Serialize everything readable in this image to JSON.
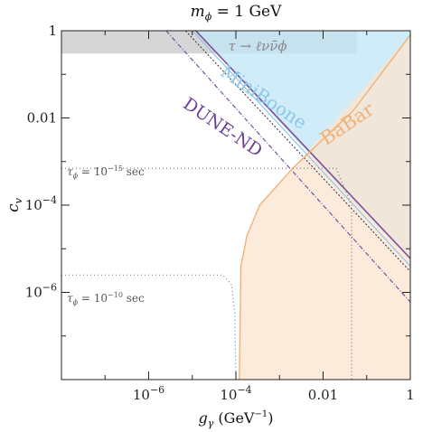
{
  "chart_data": {
    "type": "area",
    "title": "mϕ = 1 GeV",
    "xlabel_main": "g",
    "xlabel_sub": "γ",
    "xlabel_unit": " (GeV",
    "xlabel_exp": "−1",
    "xlabel_close": ")",
    "ylabel_main": "c",
    "ylabel_sub": "v",
    "xscale": "log",
    "yscale": "log",
    "xlim": [
      1e-08,
      1
    ],
    "ylim": [
      1e-08,
      1
    ],
    "x_ticks": [
      {
        "value": 1e-06,
        "base": "10",
        "exp": "−6"
      },
      {
        "value": 0.0001,
        "base": "10",
        "exp": "−4"
      },
      {
        "value": 0.01,
        "base": "0.01",
        "exp": ""
      },
      {
        "value": 1,
        "base": "1",
        "exp": ""
      }
    ],
    "y_ticks": [
      {
        "value": 1e-06,
        "base": "10",
        "exp": "−6"
      },
      {
        "value": 0.0001,
        "base": "10",
        "exp": "−4"
      },
      {
        "value": 0.01,
        "base": "0.01",
        "exp": ""
      },
      {
        "value": 1,
        "base": "1",
        "exp": ""
      }
    ],
    "regions": [
      {
        "name": "tau-decay-band",
        "color": "#c8c8c8",
        "points": [
          [
            1e-08,
            0.3
          ],
          [
            0.06,
            0.3
          ],
          [
            0.06,
            1
          ],
          [
            1e-08,
            1
          ]
        ]
      },
      {
        "name": "miniboone",
        "color": "#bfe6f5",
        "points": [
          [
            1.2e-05,
            1
          ],
          [
            0.06,
            1
          ],
          [
            1,
            1
          ],
          [
            1,
            6e-06
          ],
          [
            0.08,
            7e-05
          ]
        ]
      },
      {
        "name": "babar",
        "color": "#fbe4cf",
        "points": [
          [
            0.00012,
            1e-08
          ],
          [
            1,
            1e-08
          ],
          [
            1,
            0.8
          ],
          [
            0.002,
            0.0007
          ],
          [
            0.00035,
            0.0001
          ],
          [
            0.00018,
            2e-05
          ],
          [
            0.00013,
            4e-06
          ]
        ]
      }
    ],
    "series": [
      {
        "name": "miniboone-boundary",
        "color": "#7b4fa0",
        "dash": "",
        "width": 1.6,
        "points": [
          [
            1.2e-05,
            1
          ],
          [
            1,
            6e-06
          ]
        ]
      },
      {
        "name": "miniboone-outer",
        "color": "#8cc8e8",
        "dash": "",
        "width": 1.2,
        "points": [
          [
            1e-05,
            1
          ],
          [
            1,
            4e-06
          ]
        ]
      },
      {
        "name": "dune-dotted",
        "color": "#2a2a4a",
        "dash": "2,2",
        "width": 1.0,
        "points": [
          [
            7e-06,
            1
          ],
          [
            1,
            3e-06
          ]
        ]
      },
      {
        "name": "dune-dashdot",
        "color": "#7b4fa0",
        "dash": "5,2,1,2",
        "width": 1.2,
        "points": [
          [
            2.5e-06,
            1
          ],
          [
            1,
            6e-07
          ]
        ]
      },
      {
        "name": "babar-boundary",
        "color": "#f0b27a",
        "dash": "",
        "width": 1.4,
        "points": [
          [
            0.00012,
            1e-08
          ],
          [
            0.00013,
            4e-06
          ],
          [
            0.00018,
            2e-05
          ],
          [
            0.00035,
            0.0001
          ],
          [
            0.002,
            0.0007
          ],
          [
            0.05,
            0.015
          ],
          [
            1,
            0.8
          ]
        ]
      },
      {
        "name": "lifetime-15",
        "color": "#777777",
        "dash": "1,3",
        "width": 1.2,
        "points": [
          [
            1e-08,
            0.0007
          ],
          [
            0.02,
            0.0007
          ],
          [
            0.045,
            0.0001
          ],
          [
            0.045,
            1e-08
          ]
        ]
      },
      {
        "name": "lifetime-10",
        "color": "#6a8ab0",
        "dash": "1,3",
        "width": 1.2,
        "points": [
          [
            1e-08,
            2.5e-06
          ],
          [
            5e-05,
            2.5e-06
          ],
          [
            8e-05,
            1.5e-06
          ],
          [
            9.5e-05,
            3e-07
          ],
          [
            0.0001,
            1e-08
          ]
        ]
      }
    ],
    "annotations": {
      "tau_decay": "τ → ℓνν̄ϕ",
      "miniboone": "MiniBoone",
      "babar": "BaBar",
      "dune": "DUNE-ND",
      "lifetime_15_main": "τ",
      "lifetime_15_sub": "ϕ",
      "lifetime_15_rest": " = 10",
      "lifetime_15_exp": "−15",
      "lifetime_15_unit": " sec",
      "lifetime_10_main": "τ",
      "lifetime_10_sub": "ϕ",
      "lifetime_10_rest": " = 10",
      "lifetime_10_exp": "−10",
      "lifetime_10_unit": " sec"
    },
    "colors": {
      "miniboone_text": "#8cc8e8",
      "babar_text": "#f0b27a",
      "dune_text": "#6b3f91",
      "tau_text": "#8a8a8a",
      "lifetime_text": "#555555"
    },
    "grid": false,
    "legend": "none"
  }
}
